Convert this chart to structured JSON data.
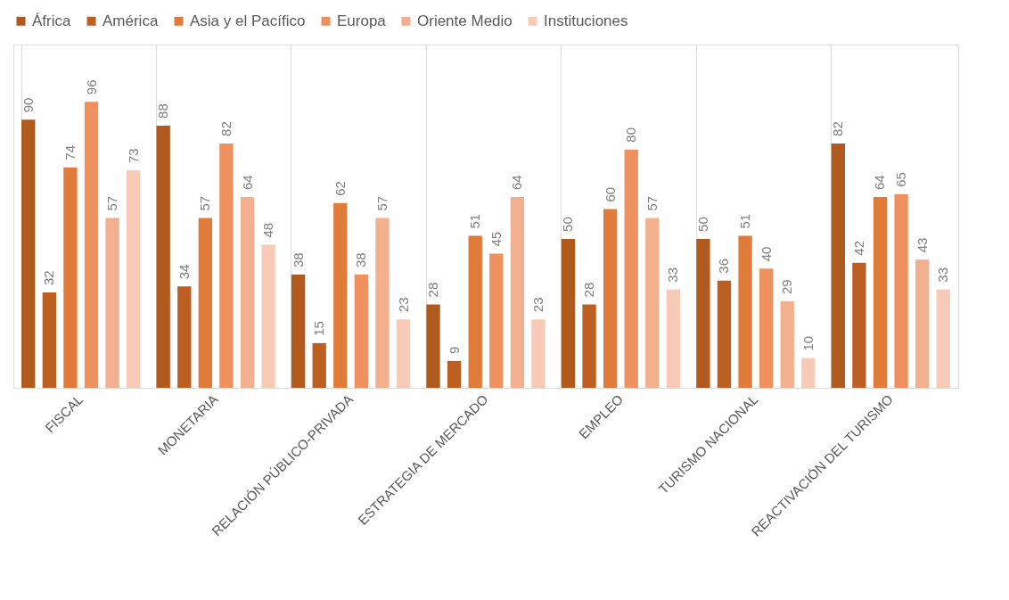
{
  "chart_data": {
    "type": "bar",
    "categories": [
      "FISCAL",
      "MONETARIA",
      "RELACIÓN PÚBLICO-PRIVADA",
      "ESTRATEGIA DE MERCADO",
      "EMPLEO",
      "TURISMO NACIONAL",
      "REACTIVACIÓN DEL TURISMO"
    ],
    "series": [
      {
        "name": "África",
        "color": "#b05a1e",
        "values": [
          90,
          88,
          38,
          28,
          50,
          50,
          82
        ]
      },
      {
        "name": "América",
        "color": "#bd5f22",
        "values": [
          32,
          34,
          15,
          9,
          28,
          36,
          42
        ]
      },
      {
        "name": "Asia y el Pacífico",
        "color": "#e07b39",
        "values": [
          74,
          57,
          62,
          51,
          60,
          51,
          64
        ]
      },
      {
        "name": "Europa",
        "color": "#ee915f",
        "values": [
          96,
          82,
          38,
          45,
          80,
          40,
          65
        ]
      },
      {
        "name": "Oriente Medio",
        "color": "#f3b08f",
        "values": [
          57,
          64,
          57,
          64,
          57,
          29,
          43
        ]
      },
      {
        "name": "Instituciones",
        "color": "#f7cbb8",
        "values": [
          73,
          48,
          23,
          23,
          33,
          10,
          33
        ]
      }
    ],
    "data_labels": true,
    "legend": "top",
    "grid": "x",
    "tick_labels": "x"
  }
}
